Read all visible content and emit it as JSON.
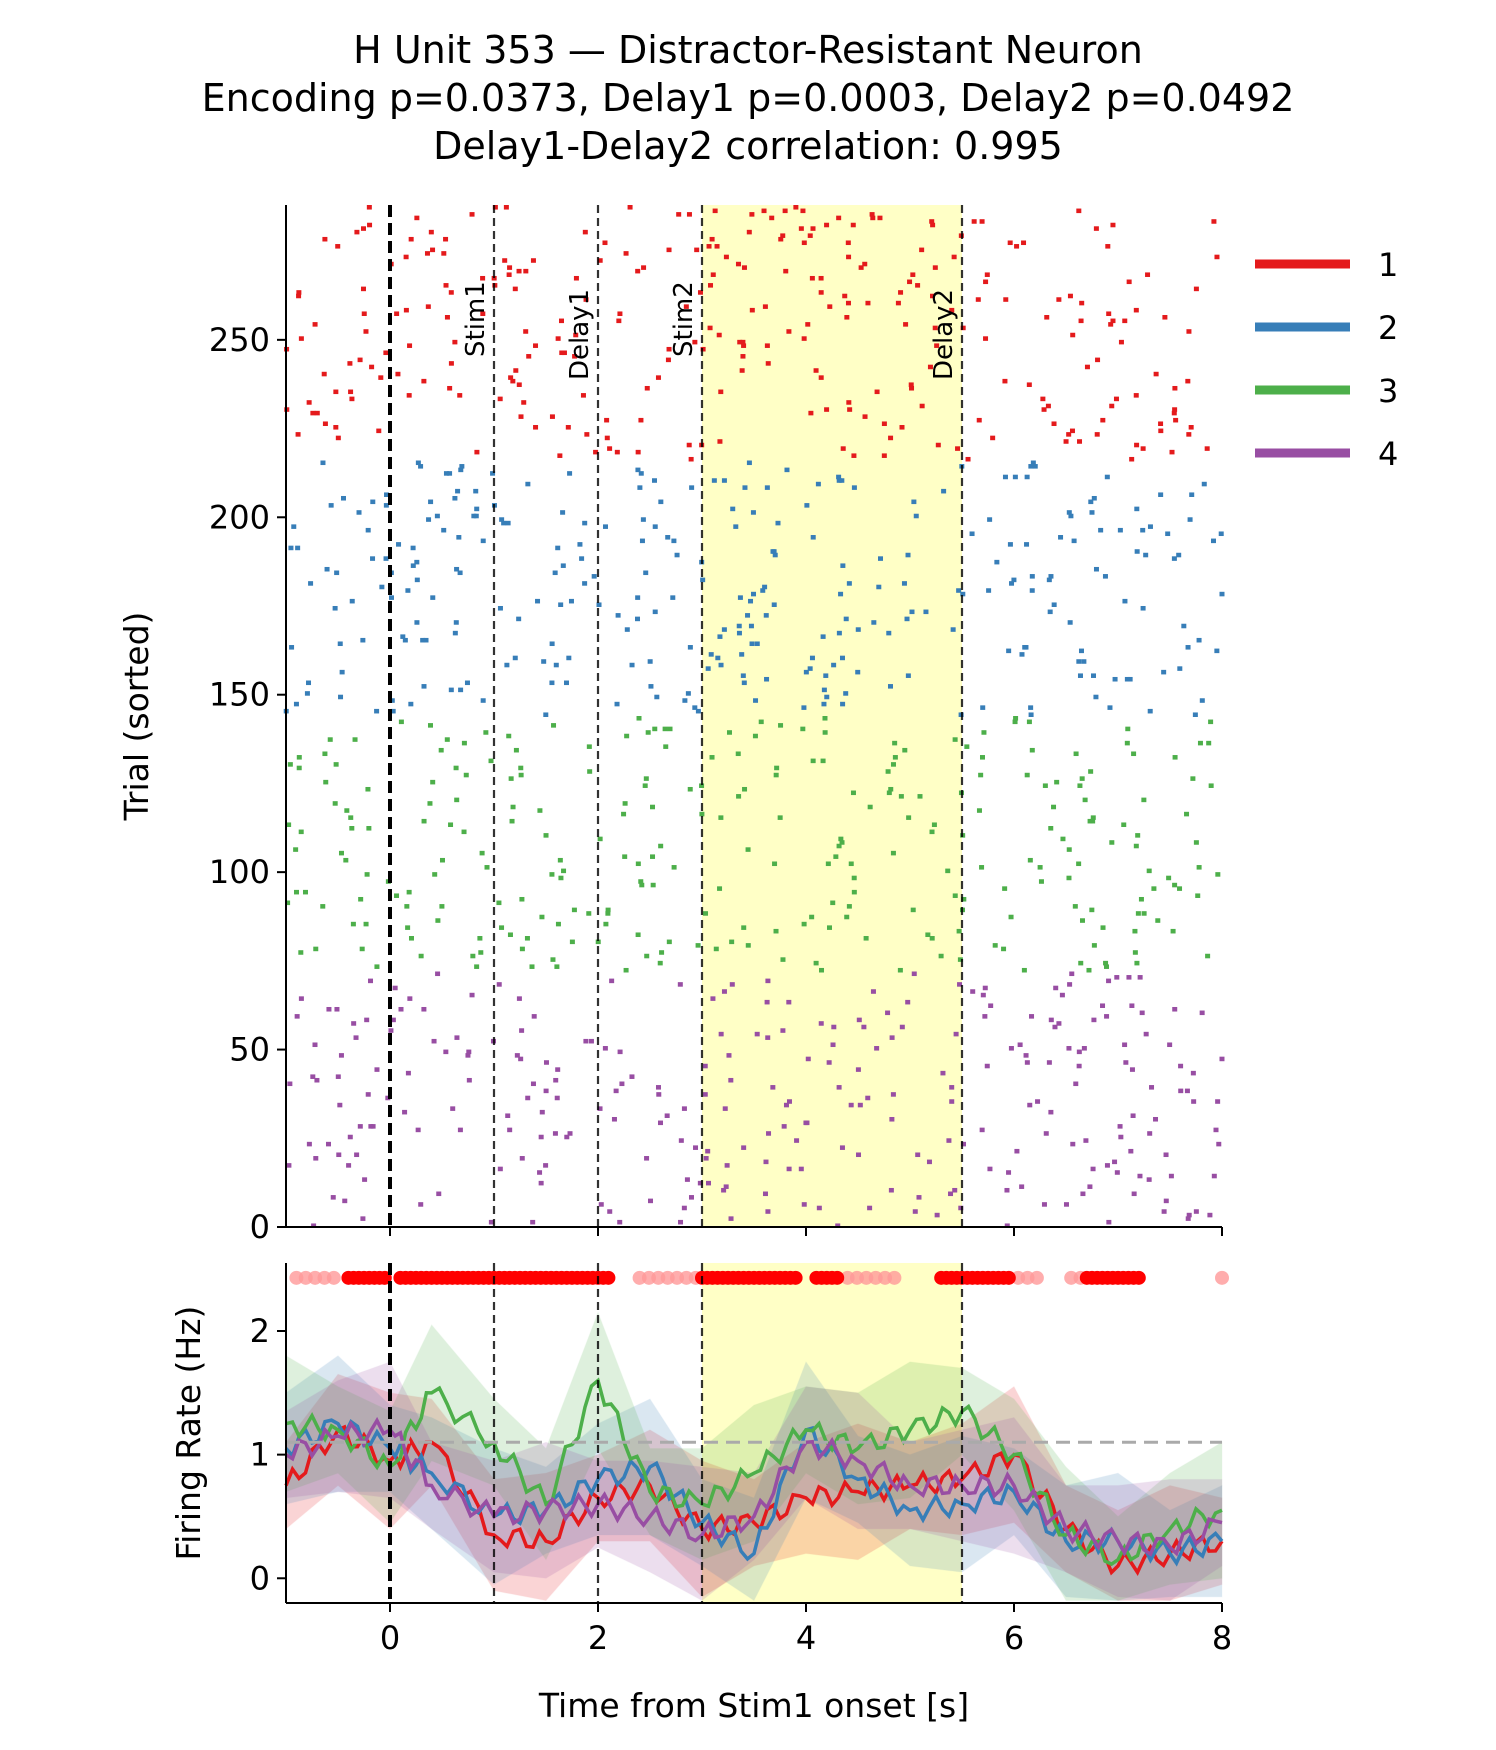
{
  "chart_data": {
    "title_lines": [
      "H Unit 353 — Distractor-Resistant Neuron",
      "Encoding p=0.0373, Delay1 p=0.0003, Delay2 p=0.0492",
      "Delay1-Delay2 correlation: 0.995"
    ],
    "xlabel": "Time from Stim1 onset [s]",
    "xlim": [
      -1,
      8
    ],
    "xticks": [
      "0",
      "2",
      "4",
      "6",
      "8"
    ],
    "event_lines": [
      {
        "t": 0,
        "label": "",
        "style": "bold"
      },
      {
        "t": 1,
        "label": "Stim1",
        "style": "thin"
      },
      {
        "t": 2,
        "label": "Delay1",
        "style": "thin"
      },
      {
        "t": 3,
        "label": "Stim2",
        "style": "thin"
      },
      {
        "t": 5.5,
        "label": "Delay2",
        "style": "thin"
      }
    ],
    "highlight_window": [
      3,
      5.5
    ],
    "highlight_color": "#ffffb3",
    "legend": [
      {
        "name": "1",
        "color": "#e41a1c"
      },
      {
        "name": "2",
        "color": "#377eb8"
      },
      {
        "name": "3",
        "color": "#4daf4a"
      },
      {
        "name": "4",
        "color": "#984ea3"
      }
    ],
    "raster": {
      "type": "scatter",
      "ylabel": "Trial (sorted)",
      "ylim": [
        0,
        288
      ],
      "yticks": [
        "0",
        "50",
        "100",
        "150",
        "200",
        "250"
      ],
      "condition_trial_ranges": [
        [
          216,
          288
        ],
        [
          144,
          216
        ],
        [
          72,
          144
        ],
        [
          0,
          72
        ]
      ]
    },
    "psth": {
      "type": "line",
      "ylabel": "Firing Rate (Hz)",
      "ylim": [
        -0.2,
        2.55
      ],
      "yticks": [
        "0",
        "1",
        "2"
      ],
      "baseline": 1.1,
      "baseline_color": "#aaaaaa",
      "sig_marker_y": 2.43,
      "significant_intervals": [
        [
          -0.4,
          -0.05
        ],
        [
          0.1,
          2.1
        ],
        [
          3.0,
          3.9
        ],
        [
          4.1,
          4.3
        ],
        [
          5.3,
          5.95
        ],
        [
          6.7,
          7.2
        ]
      ],
      "weak_intervals": [
        [
          -0.9,
          -0.5
        ],
        [
          2.4,
          2.95
        ],
        [
          4.4,
          4.9
        ],
        [
          5.95,
          6.3
        ],
        [
          6.55,
          6.7
        ],
        [
          8.0,
          8.0
        ]
      ],
      "series": [
        {
          "name": "1",
          "color": "#e41a1c",
          "x": [
            -1,
            -0.5,
            0,
            0.4,
            1,
            1.5,
            2,
            2.5,
            3,
            3.5,
            4,
            4.5,
            5,
            5.5,
            6,
            6.5,
            7,
            7.5,
            8
          ],
          "values": [
            0.75,
            1.2,
            0.95,
            1.1,
            0.35,
            0.3,
            0.65,
            0.75,
            0.4,
            0.45,
            0.65,
            0.7,
            0.75,
            0.8,
            1.0,
            0.4,
            0.1,
            0.2,
            0.3
          ]
        },
        {
          "name": "2",
          "color": "#377eb8",
          "x": [
            -1,
            -0.5,
            0,
            0.4,
            1,
            1.5,
            2,
            2.5,
            3,
            3.5,
            4,
            4.5,
            5,
            5.5,
            6,
            6.5,
            7,
            7.5,
            8
          ],
          "values": [
            1.05,
            1.25,
            1.05,
            0.85,
            0.5,
            0.55,
            0.8,
            0.9,
            0.45,
            0.2,
            1.2,
            0.8,
            0.55,
            0.6,
            0.7,
            0.3,
            0.3,
            0.2,
            0.3
          ]
        },
        {
          "name": "3",
          "color": "#4daf4a",
          "x": [
            -1,
            -0.5,
            0,
            0.4,
            1,
            1.5,
            2,
            2.5,
            3,
            3.5,
            4,
            4.5,
            5,
            5.5,
            6,
            6.5,
            7,
            7.5,
            8
          ],
          "values": [
            1.25,
            1.2,
            0.9,
            1.5,
            1.1,
            0.6,
            1.6,
            0.7,
            0.6,
            0.85,
            1.2,
            1.05,
            1.2,
            1.35,
            1.0,
            0.35,
            0.15,
            0.4,
            0.55
          ]
        },
        {
          "name": "4",
          "color": "#984ea3",
          "x": [
            -1,
            -0.5,
            0,
            0.4,
            1,
            1.5,
            2,
            2.5,
            3,
            3.5,
            4,
            4.5,
            5,
            5.5,
            6,
            6.5,
            7,
            7.5,
            8
          ],
          "values": [
            1.0,
            1.15,
            1.2,
            0.75,
            0.5,
            0.55,
            0.6,
            0.5,
            0.35,
            0.5,
            1.1,
            0.95,
            0.75,
            0.75,
            0.75,
            0.4,
            0.3,
            0.25,
            0.45
          ]
        }
      ]
    }
  }
}
